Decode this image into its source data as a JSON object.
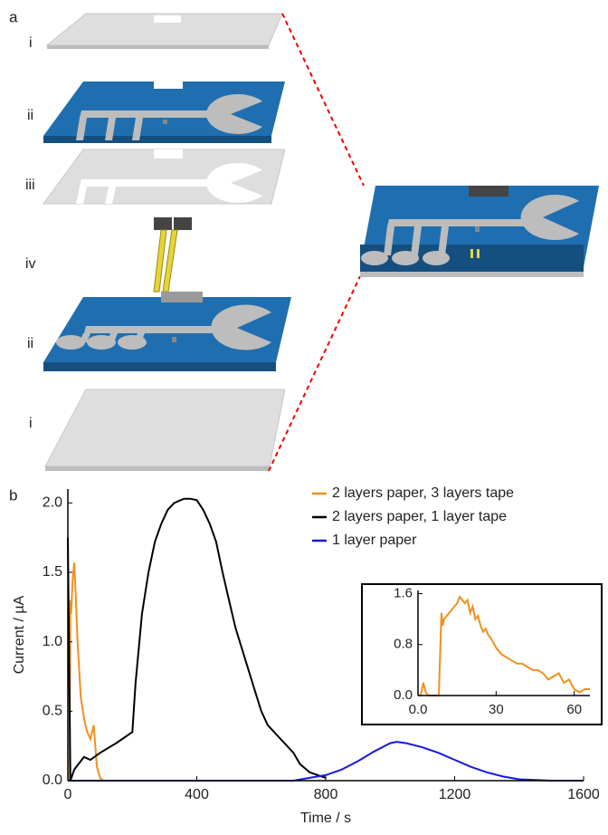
{
  "panel_a": {
    "label": "a",
    "layers": [
      "i",
      "ii",
      "iii",
      "iv",
      "ii",
      "i"
    ]
  },
  "panel_b_label": "b",
  "chart_data": [
    {
      "type": "line",
      "xlabel": "Time / s",
      "ylabel": "Current / µA",
      "xlim": [
        0,
        1600
      ],
      "ylim": [
        0,
        2.1
      ],
      "xticks": [
        0,
        400,
        800,
        1200,
        1600
      ],
      "yticks": [
        {
          "value": 0,
          "label": "0.0"
        },
        {
          "value": 0.5,
          "label": "0.5"
        },
        {
          "value": 1,
          "label": "1.0"
        },
        {
          "value": 1.5,
          "label": "1.5"
        },
        {
          "value": 2,
          "label": "2.0"
        }
      ],
      "legend": "upper right",
      "grid": false,
      "series": [
        {
          "name": "2 layers paper, 3 layers tape",
          "color": "#f0901e",
          "x": [
            0,
            5,
            8,
            10,
            15,
            20,
            25,
            30,
            40,
            50,
            60,
            70,
            80,
            90,
            100,
            110
          ],
          "values": [
            0,
            0,
            1.3,
            1.2,
            1.45,
            1.57,
            1.3,
            1.0,
            0.6,
            0.45,
            0.35,
            0.3,
            0.4,
            0.1,
            0.02,
            0
          ]
        },
        {
          "name": "2 layers paper, 1 layer tape",
          "color": "#000000",
          "x": [
            0,
            8,
            20,
            50,
            70,
            100,
            150,
            200,
            210,
            230,
            250,
            270,
            290,
            310,
            330,
            360,
            380,
            400,
            420,
            440,
            460,
            480,
            500,
            520,
            540,
            560,
            580,
            600,
            620,
            640,
            660,
            680,
            700,
            720,
            750,
            800
          ],
          "values": [
            1.75,
            0,
            0.08,
            0.17,
            0.15,
            0.2,
            0.27,
            0.35,
            0.7,
            1.2,
            1.5,
            1.72,
            1.85,
            1.95,
            2.0,
            2.03,
            2.03,
            2.02,
            1.95,
            1.85,
            1.72,
            1.5,
            1.3,
            1.1,
            0.95,
            0.8,
            0.65,
            0.5,
            0.4,
            0.35,
            0.3,
            0.25,
            0.2,
            0.12,
            0.06,
            0.02
          ]
        },
        {
          "name": "1 layer paper",
          "color": "#1818e0",
          "x": [
            0,
            700,
            750,
            800,
            850,
            900,
            950,
            1000,
            1020,
            1050,
            1100,
            1150,
            1200,
            1250,
            1300,
            1350,
            1400,
            1500,
            1600
          ],
          "values": [
            0,
            0,
            0.02,
            0.04,
            0.08,
            0.14,
            0.21,
            0.27,
            0.28,
            0.27,
            0.24,
            0.2,
            0.15,
            0.1,
            0.06,
            0.03,
            0.01,
            0,
            0
          ]
        }
      ]
    },
    {
      "type": "line",
      "xlim": [
        0,
        66
      ],
      "ylim": [
        0,
        1.65
      ],
      "xticks": [
        {
          "value": 0,
          "label": "0.0"
        },
        30,
        60
      ],
      "yticks": [
        {
          "value": 0,
          "label": "0.0"
        },
        0.8,
        1.6
      ],
      "grid": false,
      "series": [
        {
          "color": "#f0901e",
          "x": [
            0,
            1,
            2,
            3,
            4,
            8,
            9,
            9.5,
            10,
            11,
            12,
            13,
            14,
            15,
            16,
            17,
            18,
            19,
            20,
            21,
            22,
            23,
            24,
            25,
            26,
            27,
            28,
            30,
            32,
            34,
            36,
            38,
            40,
            42,
            44,
            46,
            48,
            50,
            52,
            54,
            56,
            58,
            60,
            62,
            64,
            66
          ],
          "values": [
            0,
            0,
            0.2,
            0.05,
            0,
            0,
            1.3,
            1.1,
            1.2,
            1.25,
            1.3,
            1.35,
            1.4,
            1.45,
            1.55,
            1.5,
            1.45,
            1.5,
            1.3,
            1.4,
            1.2,
            1.25,
            1.1,
            1.0,
            1.05,
            0.95,
            0.9,
            0.75,
            0.65,
            0.6,
            0.55,
            0.5,
            0.5,
            0.45,
            0.4,
            0.4,
            0.35,
            0.25,
            0.3,
            0.35,
            0.2,
            0.25,
            0.1,
            0.05,
            0.1,
            0.1
          ]
        }
      ]
    }
  ]
}
